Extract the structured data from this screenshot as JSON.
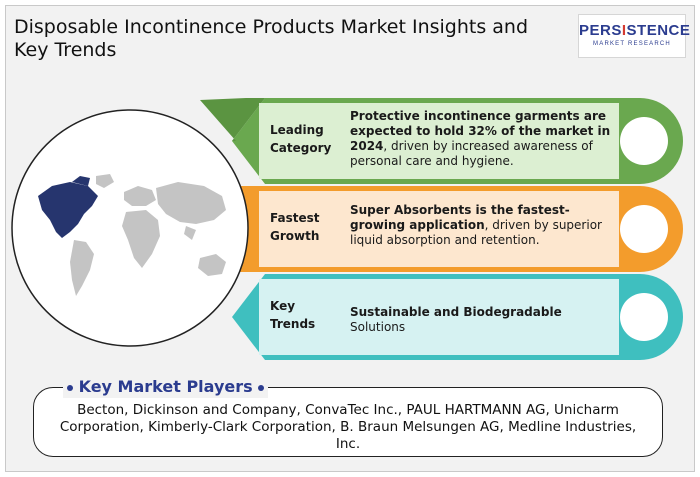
{
  "title": "Disposable Incontinence Products Market Insights and Key Trends",
  "logo": {
    "main_a": "PERS",
    "main_i": "I",
    "main_b": "STENCE",
    "sub": "MARKET RESEARCH"
  },
  "colors": {
    "green": "#6aa84f",
    "orange": "#f39c2c",
    "teal": "#3fbfbf",
    "navy": "#2b3c8f",
    "map_dark": "#26356e",
    "map_light": "#c4c4c4"
  },
  "rows": [
    {
      "label_1": "Leading",
      "label_2": "Category",
      "desc_bold": "Protective incontinence garments are expected to hold 32% of the market in 2024",
      "desc_rest": ", driven by increased awareness of personal care and hygiene."
    },
    {
      "label_1": "Fastest",
      "label_2": "Growth",
      "desc_bold": "Super Absorbents is the fastest-growing application",
      "desc_rest": ", driven by superior liquid absorption and retention."
    },
    {
      "label_1": "Key",
      "label_2": "Trends",
      "desc_bold": "Sustainable and Biodegradable",
      "desc_rest": " Solutions"
    }
  ],
  "players": {
    "heading": "Key Market Players",
    "text": "Becton, Dickinson and Company, ConvaTec Inc., PAUL HARTMANN AG, Unicharm Corporation, Kimberly-Clark Corporation, B. Braun Melsungen AG, Medline Industries, Inc."
  }
}
